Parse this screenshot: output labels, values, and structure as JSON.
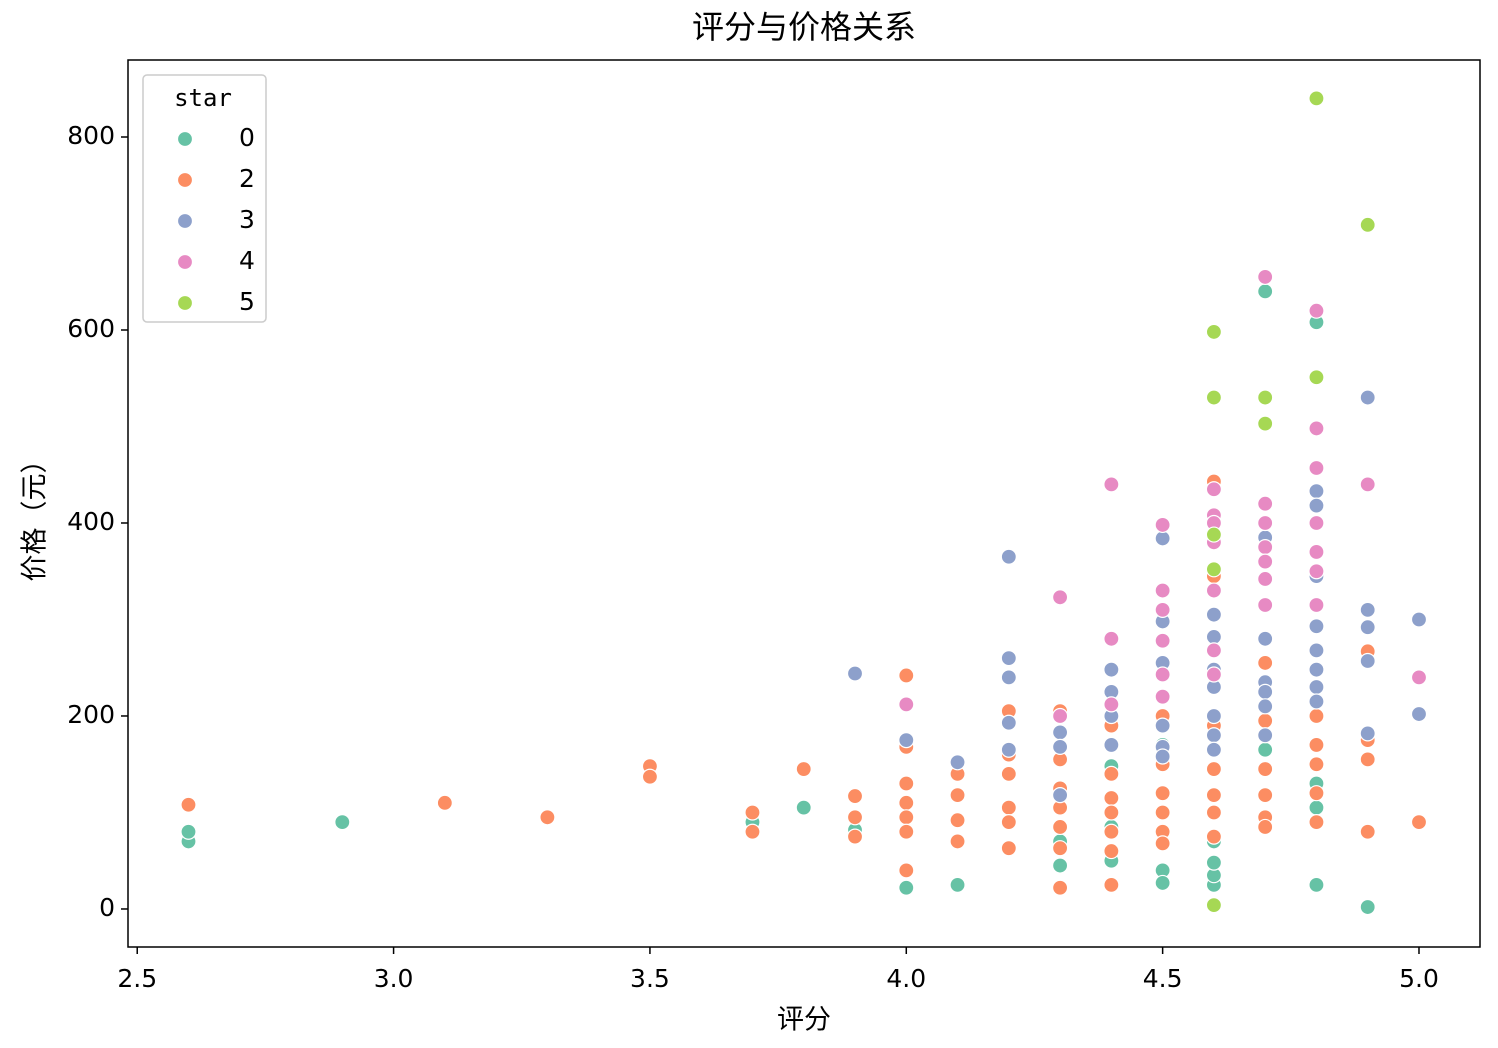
{
  "chart_data": {
    "type": "scatter",
    "title": "评分与价格关系",
    "x_label": "评分",
    "y_label": "价格（元）",
    "xlim": [
      2.482,
      5.119
    ],
    "ylim": [
      -39.4,
      879.8
    ],
    "xticks": [
      2.5,
      {
        "value": 3,
        "label": "3.0"
      },
      3.5,
      {
        "value": 4,
        "label": "4.0"
      },
      4.5,
      {
        "value": 5,
        "label": "5.0"
      }
    ],
    "yticks": [
      0,
      200,
      400,
      600,
      800
    ],
    "legend_title": "star",
    "legend_position": "upper left",
    "grid": false,
    "series": [
      {
        "name": "0",
        "color": "#66c2a5",
        "x": [
          2.6,
          2.6,
          2.9,
          3.7,
          3.8,
          3.9,
          4.0,
          4.1,
          4.3,
          4.3,
          4.4,
          4.4,
          4.4,
          4.5,
          4.5,
          4.5,
          4.6,
          4.6,
          4.6,
          4.6,
          4.7,
          4.7,
          4.8,
          4.8,
          4.8,
          4.8,
          4.9
        ],
        "values": [
          70,
          80,
          90,
          90,
          105,
          82,
          22,
          25,
          70,
          45,
          50,
          85,
          148,
          40,
          27,
          170,
          25,
          35,
          48,
          70,
          640,
          165,
          608,
          25,
          130,
          105,
          2
        ]
      },
      {
        "name": "2",
        "color": "#fc8d62",
        "x": [
          2.6,
          3.1,
          3.3,
          3.5,
          3.5,
          3.7,
          3.7,
          3.8,
          3.9,
          3.9,
          3.9,
          4.0,
          4.0,
          4.0,
          4.0,
          4.0,
          4.0,
          4.0,
          4.1,
          4.1,
          4.1,
          4.1,
          4.2,
          4.2,
          4.2,
          4.2,
          4.2,
          4.2,
          4.3,
          4.3,
          4.3,
          4.3,
          4.3,
          4.3,
          4.3,
          4.4,
          4.4,
          4.4,
          4.4,
          4.4,
          4.4,
          4.4,
          4.5,
          4.5,
          4.5,
          4.5,
          4.5,
          4.5,
          4.6,
          4.6,
          4.6,
          4.6,
          4.6,
          4.6,
          4.6,
          4.7,
          4.7,
          4.7,
          4.7,
          4.7,
          4.7,
          4.8,
          4.8,
          4.8,
          4.8,
          4.8,
          4.9,
          4.9,
          4.9,
          4.9,
          5.0
        ],
        "values": [
          108,
          110,
          95,
          148,
          137,
          100,
          80,
          145,
          117,
          95,
          75,
          242,
          168,
          130,
          110,
          95,
          80,
          40,
          140,
          118,
          92,
          70,
          205,
          160,
          140,
          105,
          90,
          63,
          205,
          155,
          125,
          105,
          85,
          63,
          22,
          190,
          140,
          115,
          100,
          80,
          60,
          25,
          200,
          150,
          120,
          100,
          80,
          68,
          443,
          345,
          190,
          145,
          118,
          100,
          75,
          255,
          195,
          145,
          118,
          95,
          85,
          200,
          170,
          150,
          120,
          90,
          267,
          175,
          155,
          80,
          90
        ]
      },
      {
        "name": "3",
        "color": "#8da0cb",
        "x": [
          3.9,
          4.0,
          4.1,
          4.2,
          4.2,
          4.2,
          4.2,
          4.2,
          4.3,
          4.3,
          4.3,
          4.4,
          4.4,
          4.4,
          4.4,
          4.5,
          4.5,
          4.5,
          4.5,
          4.5,
          4.5,
          4.6,
          4.6,
          4.6,
          4.6,
          4.6,
          4.6,
          4.6,
          4.7,
          4.7,
          4.7,
          4.7,
          4.7,
          4.7,
          4.8,
          4.8,
          4.8,
          4.8,
          4.8,
          4.8,
          4.8,
          4.8,
          4.9,
          4.9,
          4.9,
          4.9,
          4.9,
          5.0,
          5.0
        ],
        "values": [
          244,
          175,
          152,
          365,
          260,
          240,
          193,
          165,
          183,
          168,
          118,
          248,
          225,
          200,
          170,
          384,
          298,
          255,
          190,
          168,
          158,
          305,
          282,
          248,
          230,
          200,
          180,
          165,
          385,
          280,
          235,
          225,
          210,
          180,
          433,
          418,
          345,
          293,
          268,
          248,
          230,
          215,
          530,
          310,
          292,
          257,
          182,
          300,
          202
        ]
      },
      {
        "name": "4",
        "color": "#e78ac3",
        "x": [
          4.0,
          4.3,
          4.3,
          4.4,
          4.4,
          4.4,
          4.5,
          4.5,
          4.5,
          4.5,
          4.5,
          4.5,
          4.6,
          4.6,
          4.6,
          4.6,
          4.6,
          4.6,
          4.6,
          4.7,
          4.7,
          4.7,
          4.7,
          4.7,
          4.7,
          4.7,
          4.8,
          4.8,
          4.8,
          4.8,
          4.8,
          4.8,
          4.8,
          4.9,
          5.0
        ],
        "values": [
          212,
          323,
          200,
          440,
          280,
          212,
          398,
          330,
          310,
          278,
          243,
          220,
          435,
          408,
          400,
          380,
          330,
          268,
          243,
          655,
          420,
          400,
          375,
          360,
          342,
          315,
          620,
          498,
          457,
          400,
          370,
          350,
          315,
          440,
          240
        ]
      },
      {
        "name": "5",
        "color": "#a6d854",
        "x": [
          4.6,
          4.6,
          4.6,
          4.6,
          4.6,
          4.7,
          4.7,
          4.8,
          4.8,
          4.9
        ],
        "values": [
          598,
          530,
          388,
          352,
          4,
          530,
          503,
          840,
          551,
          709
        ]
      }
    ]
  }
}
